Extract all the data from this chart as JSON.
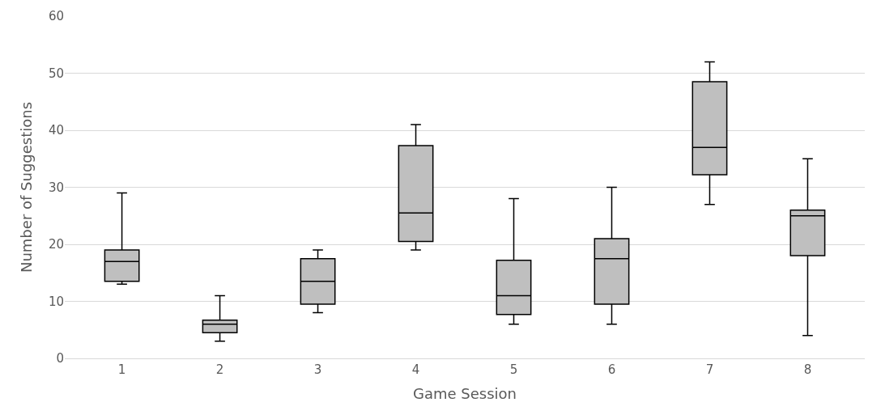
{
  "chart_data": {
    "type": "box",
    "xlabel": "Game Session",
    "ylabel": "Number of Suggestions",
    "categories": [
      "1",
      "2",
      "3",
      "4",
      "5",
      "6",
      "7",
      "8"
    ],
    "color": "#bfbfbf",
    "ylim": [
      0,
      60
    ],
    "yticks": [
      0,
      10,
      20,
      30,
      40,
      50,
      60
    ],
    "grid": "y",
    "legend": false,
    "boxes": [
      {
        "low": 13,
        "q1": 13.5,
        "median": 17,
        "q3": 19,
        "high": 29
      },
      {
        "low": 3,
        "q1": 4.5,
        "median": 6,
        "q3": 6.7,
        "high": 11
      },
      {
        "low": 8,
        "q1": 9.5,
        "median": 13.5,
        "q3": 17.5,
        "high": 19
      },
      {
        "low": 19,
        "q1": 20.5,
        "median": 25.5,
        "q3": 37.3,
        "high": 41
      },
      {
        "low": 6,
        "q1": 7.7,
        "median": 11,
        "q3": 17.2,
        "high": 28
      },
      {
        "low": 6,
        "q1": 9.5,
        "median": 17.5,
        "q3": 21,
        "high": 30
      },
      {
        "low": 27,
        "q1": 32.2,
        "median": 37,
        "q3": 48.5,
        "high": 52
      },
      {
        "low": 4,
        "q1": 18,
        "median": 25,
        "q3": 26,
        "high": 35
      }
    ]
  }
}
